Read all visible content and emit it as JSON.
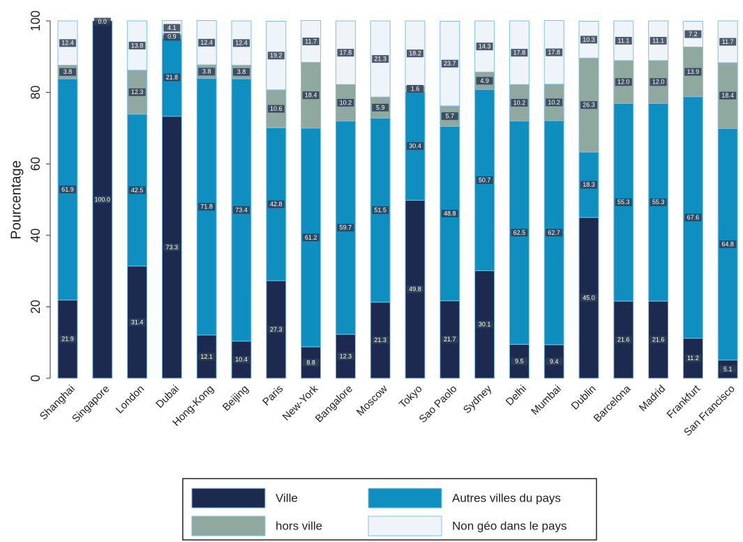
{
  "chart_data": {
    "type": "stacked_bar",
    "y_label": "Pourcentage",
    "categories": [
      "Shanghai",
      "Singapore",
      "London",
      "Dubai",
      "Hong-Kong",
      "Beijing",
      "Paris",
      "New-York",
      "Bangalore",
      "Moscow",
      "Tokyo",
      "Sao Paolo",
      "Sydney",
      "Delhi",
      "Mumbai",
      "Dublin",
      "Barcelona",
      "Madrid",
      "Frankfurt",
      "San Francisco"
    ],
    "series": [
      {
        "name": "Ville",
        "color": "#1b2a4e",
        "values": [
          21.9,
          100,
          31.4,
          73.3,
          12.1,
          10.4,
          27.3,
          8.8,
          12.3,
          21.3,
          49.8,
          21.7,
          30.1,
          9.5,
          9.4,
          45,
          21.6,
          21.6,
          11.2,
          5.1
        ],
        "value_labels": [
          "21.9",
          "100.0",
          "31.4",
          "73.3",
          "12.1",
          "10.4",
          "27.3",
          "8.8",
          "12.3",
          "21.3",
          "49.8",
          "21.7",
          "30.1",
          "9.5",
          "9.4",
          "45.0",
          "21.6",
          "21.6",
          "11.2",
          "5.1"
        ]
      },
      {
        "name": "Autres villes du pays",
        "color": "#0e8fc0",
        "values": [
          61.9,
          null,
          42.5,
          21.8,
          71.8,
          73.4,
          42.8,
          61.2,
          59.7,
          51.5,
          30.4,
          48.8,
          50.7,
          62.5,
          62.7,
          18.3,
          55.3,
          55.3,
          67.6,
          64.8
        ],
        "value_labels": [
          "61.9",
          null,
          "42.5",
          "21.8",
          "71.8",
          "73.4",
          "42.8",
          "61.2",
          "59.7",
          "51.5",
          "30.4",
          "48.8",
          "50.7",
          "62.5",
          "62.7",
          "18.3",
          "55.3",
          "55.3",
          "67.6",
          "64.8"
        ]
      },
      {
        "name": "hors ville",
        "color": "#8fa9a0",
        "values": [
          3.8,
          null,
          12.3,
          0.9,
          3.8,
          3.8,
          10.6,
          18.4,
          10.2,
          5.9,
          1.6,
          5.7,
          4.9,
          10.2,
          10.2,
          26.3,
          12,
          12,
          13.9,
          18.4
        ],
        "value_labels": [
          "3.8",
          null,
          "12.3",
          "0.9",
          "3.8",
          "3.8",
          "10.6",
          "18.4",
          "10.2",
          "5.9",
          "1.6",
          "5.7",
          "4.9",
          "10.2",
          "10.2",
          "26.3",
          "12.0",
          "12.0",
          "13.9",
          "18.4"
        ]
      },
      {
        "name": "Non géo dans le pays",
        "color": "#eef4f8",
        "values": [
          12.4,
          0,
          13.8,
          4.1,
          12.4,
          12.4,
          19.2,
          11.7,
          17.8,
          21.3,
          18.2,
          23.7,
          14.3,
          17.8,
          17.8,
          10.3,
          11.1,
          11.1,
          7.2,
          11.7
        ],
        "value_labels": [
          "12.4",
          "0.0",
          "13.8",
          "4.1",
          "12.4",
          "12.4",
          "19.2",
          "11.7",
          "17.8",
          "21.3",
          "18.2",
          "23.7",
          "14.3",
          "17.8",
          "17.8",
          "10.3",
          "11.1",
          "11.1",
          "7.2",
          "11.7"
        ]
      }
    ],
    "ylim": [
      0,
      100
    ],
    "yticks": [
      0,
      20,
      40,
      60,
      80,
      100
    ],
    "grid": false,
    "legend": "bottom"
  }
}
